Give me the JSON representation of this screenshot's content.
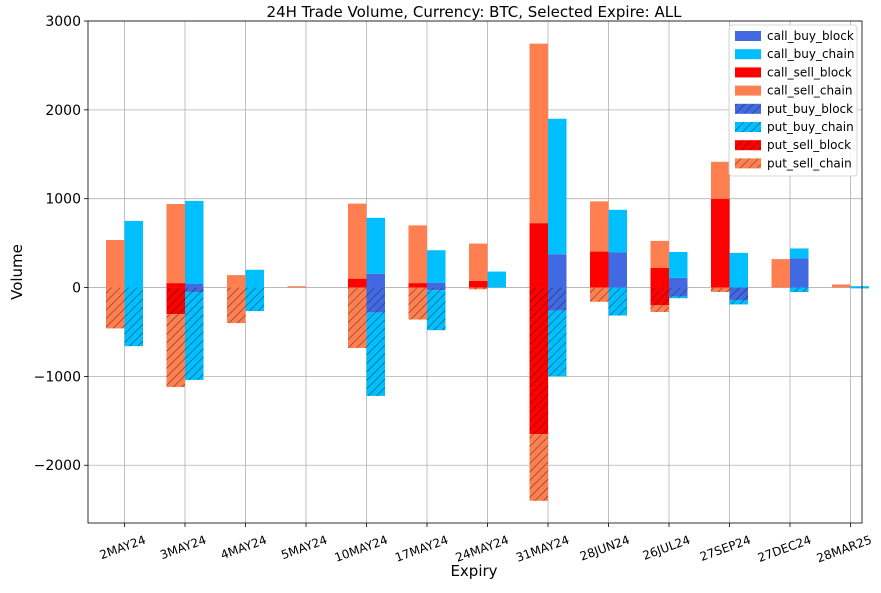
{
  "chart_data": {
    "type": "bar",
    "title": "24H Trade Volume, Currency: BTC, Selected Expire: ALL",
    "xlabel": "Expiry",
    "ylabel": "Volume",
    "ylim": [
      -2650,
      3000
    ],
    "yticks": [
      -2000,
      -1000,
      0,
      1000,
      2000,
      3000
    ],
    "ytick_labels": [
      "−2000",
      "−1000",
      "0",
      "1000",
      "2000",
      "3000"
    ],
    "grid": true,
    "legend_position": "top-right",
    "categories": [
      "2MAY24",
      "3MAY24",
      "4MAY24",
      "5MAY24",
      "10MAY24",
      "17MAY24",
      "24MAY24",
      "31MAY24",
      "28JUN24",
      "26JUL24",
      "27SEP24",
      "27DEC24",
      "28MAR25"
    ],
    "series": [
      {
        "name": "call_buy_block",
        "color": "#4169e1",
        "hatch": false,
        "group": "buy",
        "sign": 1,
        "values": [
          0,
          40,
          0,
          0,
          155,
          55,
          0,
          375,
          395,
          110,
          0,
          330,
          0
        ]
      },
      {
        "name": "call_buy_chain",
        "color": "#00bfff",
        "hatch": false,
        "group": "buy",
        "sign": 1,
        "values": [
          750,
          935,
          200,
          0,
          630,
          365,
          180,
          1525,
          480,
          290,
          390,
          110,
          15
        ]
      },
      {
        "name": "call_sell_block",
        "color": "#ff0000",
        "hatch": false,
        "group": "sell",
        "sign": 1,
        "values": [
          0,
          50,
          0,
          0,
          100,
          50,
          75,
          725,
          405,
          220,
          1000,
          0,
          0
        ]
      },
      {
        "name": "call_sell_chain",
        "color": "#ff7f50",
        "hatch": false,
        "group": "sell",
        "sign": 1,
        "values": [
          535,
          890,
          140,
          15,
          845,
          650,
          420,
          2020,
          565,
          305,
          415,
          320,
          35
        ]
      },
      {
        "name": "put_buy_block",
        "color": "#4169e1",
        "hatch": true,
        "group": "buy",
        "sign": -1,
        "values": [
          0,
          50,
          0,
          0,
          280,
          30,
          0,
          260,
          0,
          100,
          140,
          0,
          0
        ]
      },
      {
        "name": "put_buy_chain",
        "color": "#00bfff",
        "hatch": true,
        "group": "buy",
        "sign": -1,
        "values": [
          660,
          990,
          265,
          0,
          940,
          450,
          0,
          740,
          315,
          20,
          50,
          50,
          5
        ]
      },
      {
        "name": "put_sell_block",
        "color": "#ff0000",
        "hatch": true,
        "group": "sell",
        "sign": -1,
        "values": [
          0,
          300,
          0,
          0,
          0,
          0,
          0,
          1650,
          0,
          200,
          0,
          0,
          0
        ]
      },
      {
        "name": "put_sell_chain",
        "color": "#ff7f50",
        "hatch": true,
        "group": "sell",
        "sign": -1,
        "values": [
          460,
          820,
          400,
          0,
          680,
          360,
          20,
          750,
          160,
          75,
          50,
          0,
          0
        ]
      }
    ]
  }
}
